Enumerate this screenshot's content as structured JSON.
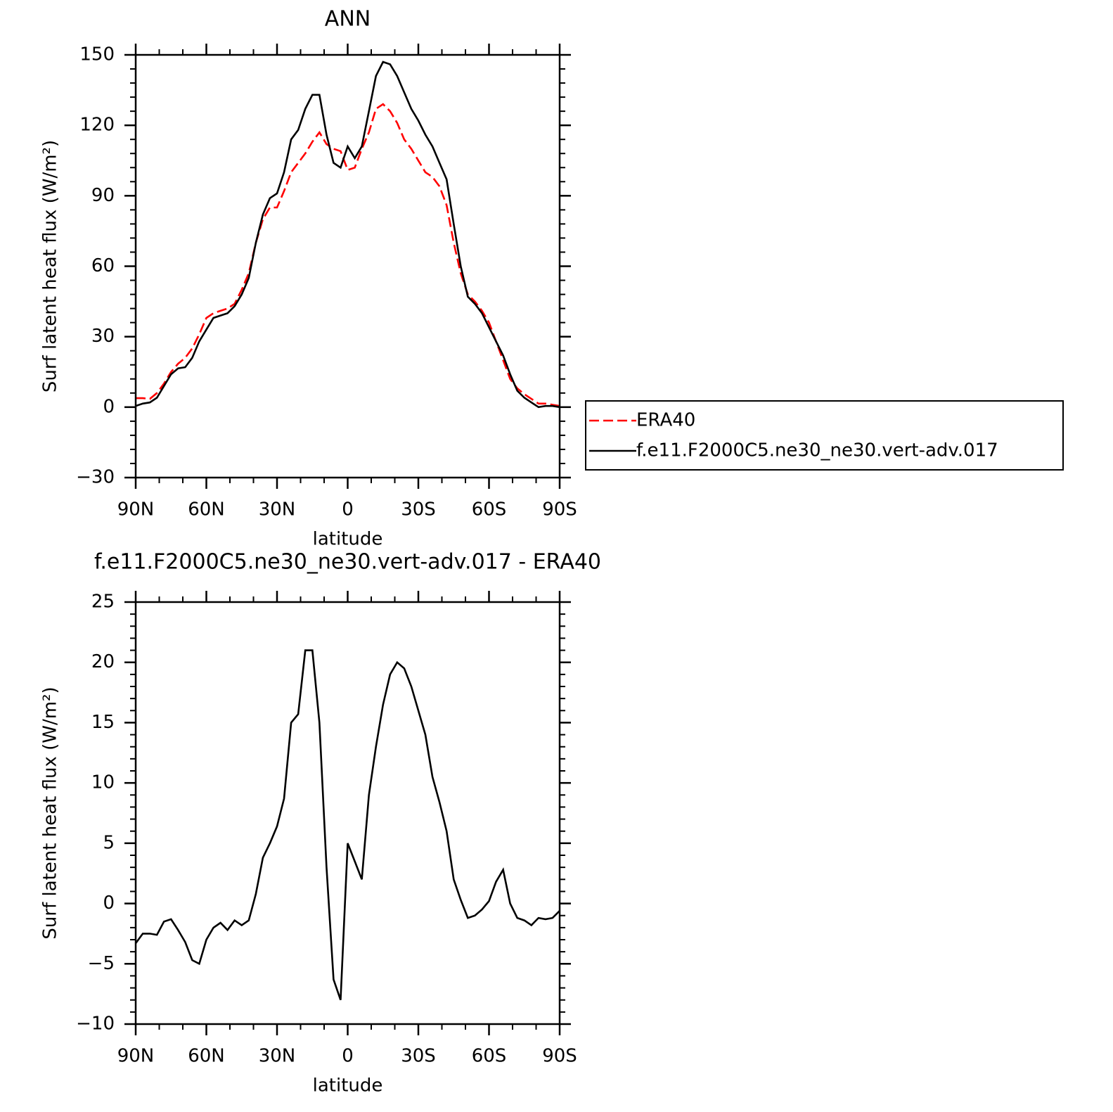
{
  "chart_data": [
    {
      "type": "line",
      "title": "ANN",
      "xlabel": "latitude",
      "ylabel": "Surf latent heat flux (W/m²)",
      "x": [
        90,
        87,
        84,
        81,
        78,
        75,
        72,
        69,
        66,
        63,
        60,
        57,
        54,
        51,
        48,
        45,
        42,
        39,
        36,
        33,
        30,
        27,
        24,
        21,
        18,
        15,
        12,
        9,
        6,
        3,
        0,
        -3,
        -6,
        -9,
        -12,
        -15,
        -18,
        -21,
        -24,
        -27,
        -30,
        -33,
        -36,
        -39,
        -42,
        -45,
        -48,
        -51,
        -54,
        -57,
        -60,
        -63,
        -66,
        -69,
        -72,
        -75,
        -78,
        -81,
        -84,
        -87,
        -90
      ],
      "series": [
        {
          "name": "ERA40",
          "color": "#ff0000",
          "dashed": true,
          "values": [
            3.8,
            3.8,
            3.5,
            6,
            10,
            15,
            18.5,
            21,
            25,
            31,
            38,
            40,
            41,
            42,
            44,
            50,
            57,
            70,
            80,
            85,
            85,
            92,
            100,
            104,
            108,
            113,
            117,
            112,
            110,
            109,
            101,
            102,
            110,
            117,
            127,
            129,
            126,
            121,
            114,
            110,
            105,
            100,
            98,
            94,
            86,
            70,
            57,
            48,
            45,
            41,
            36,
            28,
            20,
            12,
            8,
            5.5,
            3.5,
            1.5,
            1.5,
            1,
            0.5
          ]
        },
        {
          "name": "f.e11.F2000C5.ne30_ne30.vert-adv.017",
          "color": "#000000",
          "dashed": false,
          "values": [
            0.5,
            1.5,
            2,
            4,
            9,
            14,
            16.5,
            17,
            21,
            28,
            33,
            38,
            39,
            40,
            43,
            48,
            55,
            70,
            82,
            89,
            91,
            100,
            114,
            118,
            127,
            133,
            133,
            116,
            104,
            102,
            111,
            106,
            111,
            126,
            141,
            147,
            146,
            141,
            134,
            127,
            122,
            116,
            111,
            104,
            97,
            78,
            60,
            47,
            44,
            40,
            34,
            28,
            22,
            14,
            7,
            4,
            2,
            0,
            0.5,
            0.5,
            0
          ]
        }
      ],
      "xlim": [
        90,
        -90
      ],
      "xticks": [
        {
          "value": 90,
          "label": "90N"
        },
        {
          "value": 60,
          "label": "60N"
        },
        {
          "value": 30,
          "label": "30N"
        },
        0,
        {
          "value": -30,
          "label": "30S"
        },
        {
          "value": -60,
          "label": "60S"
        },
        {
          "value": -90,
          "label": "90S"
        }
      ],
      "ylim": [
        -30,
        150
      ],
      "yticks": [
        -30,
        0,
        30,
        60,
        90,
        120,
        150
      ],
      "legend": "right"
    },
    {
      "type": "line",
      "title": "f.e11.F2000C5.ne30_ne30.vert-adv.017 - ERA40",
      "xlabel": "latitude",
      "ylabel": "Surf latent heat flux (W/m²)",
      "x": [
        90,
        87,
        84,
        81,
        78,
        75,
        72,
        69,
        66,
        63,
        60,
        57,
        54,
        51,
        48,
        45,
        42,
        39,
        36,
        33,
        30,
        27,
        24,
        21,
        18,
        15,
        12,
        9,
        6,
        3,
        0,
        -3,
        -6,
        -9,
        -12,
        -15,
        -18,
        -21,
        -24,
        -27,
        -30,
        -33,
        -36,
        -39,
        -42,
        -45,
        -48,
        -51,
        -54,
        -57,
        -60,
        -63,
        -66,
        -69,
        -72,
        -75,
        -78,
        -81,
        -84,
        -87,
        -90
      ],
      "values": [
        -3.3,
        -2.5,
        -2.5,
        -2.6,
        -1.5,
        -1.3,
        -2.2,
        -3.2,
        -4.7,
        -5,
        -3,
        -2,
        -1.6,
        -2.2,
        -1.4,
        -1.8,
        -1.4,
        0.8,
        3.8,
        5,
        6.4,
        8.7,
        15,
        15.7,
        21,
        21,
        15,
        3,
        -6.3,
        -8,
        5,
        3.5,
        2,
        9,
        13,
        16.5,
        19,
        20,
        19.5,
        18,
        16,
        14,
        10.5,
        8.4,
        6,
        2,
        0.3,
        -1.2,
        -1,
        -0.5,
        0.2,
        1.8,
        2.8,
        0,
        -1.2,
        -1.4,
        -1.8,
        -1.2,
        -1.3,
        -1.2,
        -0.6
      ],
      "color": "#000000",
      "xlim": [
        90,
        -90
      ],
      "xticks": [
        {
          "value": 90,
          "label": "90N"
        },
        {
          "value": 60,
          "label": "60N"
        },
        {
          "value": 30,
          "label": "30N"
        },
        0,
        {
          "value": -30,
          "label": "30S"
        },
        {
          "value": -60,
          "label": "60S"
        },
        {
          "value": -90,
          "label": "90S"
        }
      ],
      "ylim": [
        -10,
        25
      ],
      "yticks": [
        -10,
        -5,
        0,
        5,
        10,
        15,
        20,
        25
      ]
    }
  ]
}
